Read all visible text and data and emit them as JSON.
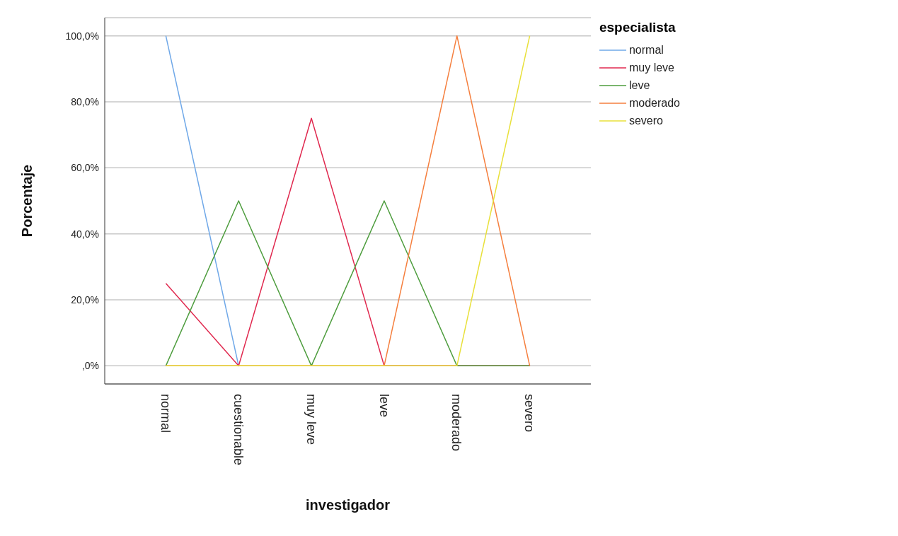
{
  "chart_data": {
    "type": "line",
    "xlabel": "investigador",
    "ylabel": "Porcentaje",
    "legend_title": "especialista",
    "legend": "top right",
    "grid": "y",
    "categories": [
      "normal",
      "cuestionable",
      "muy leve",
      "leve",
      "moderado",
      "severo"
    ],
    "ylim": [
      -5.5,
      105.5
    ],
    "yticks": [
      {
        "value": 0,
        "label": ",0%"
      },
      {
        "value": 20,
        "label": "20,0%"
      },
      {
        "value": 40,
        "label": "40,0%"
      },
      {
        "value": 60,
        "label": "60,0%"
      },
      {
        "value": 80,
        "label": "80,0%"
      },
      {
        "value": 100,
        "label": "100,0%"
      }
    ],
    "series": [
      {
        "name": "normal",
        "color": "#6fa8e8",
        "values": [
          100,
          0,
          null,
          null,
          null,
          null
        ]
      },
      {
        "name": "muy leve",
        "color": "#e0294f",
        "values": [
          25,
          0,
          75,
          0,
          0,
          0
        ]
      },
      {
        "name": "leve",
        "color": "#4e9d3e",
        "values": [
          0,
          50,
          0,
          50,
          0,
          0
        ]
      },
      {
        "name": "moderado",
        "color": "#f57f3e",
        "values": [
          0,
          0,
          0,
          0,
          100,
          0
        ]
      },
      {
        "name": "severo",
        "color": "#e8e03a",
        "values": [
          0,
          0,
          0,
          0,
          0,
          100
        ]
      }
    ]
  }
}
